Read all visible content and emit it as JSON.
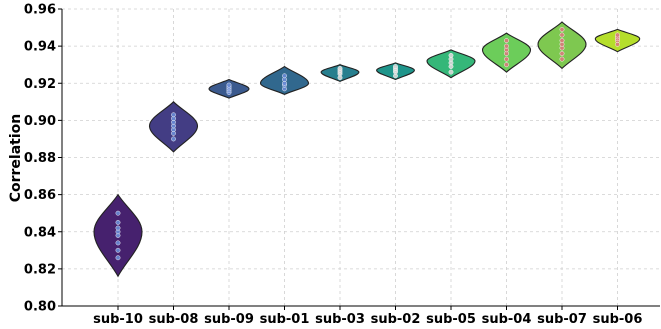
{
  "chart_data": {
    "type": "violin",
    "title": "",
    "xlabel": "",
    "ylabel": "Correlation",
    "ylim": [
      0.8,
      0.96
    ],
    "yticks": [
      "0.80",
      "0.82",
      "0.84",
      "0.86",
      "0.88",
      "0.90",
      "0.92",
      "0.94",
      "0.96"
    ],
    "grid": true,
    "categories": [
      "sub-10",
      "sub-08",
      "sub-09",
      "sub-01",
      "sub-03",
      "sub-02",
      "sub-05",
      "sub-04",
      "sub-07",
      "sub-06"
    ],
    "violins": [
      {
        "name": "sub-10",
        "min": 0.816,
        "max": 0.86,
        "peak": 0.84,
        "median": 0.84,
        "color": "#46216e",
        "points": [
          0.826,
          0.83,
          0.834,
          0.838,
          0.84,
          0.842,
          0.845,
          0.85
        ]
      },
      {
        "name": "sub-08",
        "min": 0.883,
        "max": 0.91,
        "peak": 0.897,
        "median": 0.897,
        "color": "#433d84",
        "points": [
          0.89,
          0.893,
          0.895,
          0.897,
          0.899,
          0.901,
          0.903
        ]
      },
      {
        "name": "sub-09",
        "min": 0.912,
        "max": 0.922,
        "peak": 0.917,
        "median": 0.917,
        "color": "#3b5a8e",
        "points": [
          0.915,
          0.916,
          0.917,
          0.918,
          0.919
        ]
      },
      {
        "name": "sub-01",
        "min": 0.914,
        "max": 0.929,
        "peak": 0.92,
        "median": 0.92,
        "color": "#31688e",
        "points": [
          0.917,
          0.919,
          0.92,
          0.922,
          0.924
        ]
      },
      {
        "name": "sub-03",
        "min": 0.921,
        "max": 0.93,
        "peak": 0.926,
        "median": 0.926,
        "color": "#277f8e",
        "points": [
          0.923,
          0.925,
          0.926,
          0.927,
          0.928
        ]
      },
      {
        "name": "sub-02",
        "min": 0.922,
        "max": 0.931,
        "peak": 0.927,
        "median": 0.927,
        "color": "#1f958b",
        "points": [
          0.924,
          0.926,
          0.927,
          0.928,
          0.929
        ]
      },
      {
        "name": "sub-05",
        "min": 0.923,
        "max": 0.938,
        "peak": 0.932,
        "median": 0.932,
        "color": "#35b779",
        "points": [
          0.926,
          0.929,
          0.931,
          0.933,
          0.935
        ]
      },
      {
        "name": "sub-04",
        "min": 0.926,
        "max": 0.947,
        "peak": 0.938,
        "median": 0.938,
        "color": "#6ccd5a",
        "points": [
          0.93,
          0.933,
          0.936,
          0.938,
          0.94,
          0.943
        ]
      },
      {
        "name": "sub-07",
        "min": 0.928,
        "max": 0.953,
        "peak": 0.941,
        "median": 0.941,
        "color": "#7ec850",
        "points": [
          0.933,
          0.936,
          0.939,
          0.941,
          0.943,
          0.946,
          0.949
        ]
      },
      {
        "name": "sub-06",
        "min": 0.937,
        "max": 0.949,
        "peak": 0.944,
        "median": 0.944,
        "color": "#b5de2b",
        "points": [
          0.941,
          0.943,
          0.944,
          0.945,
          0.946
        ]
      }
    ]
  }
}
